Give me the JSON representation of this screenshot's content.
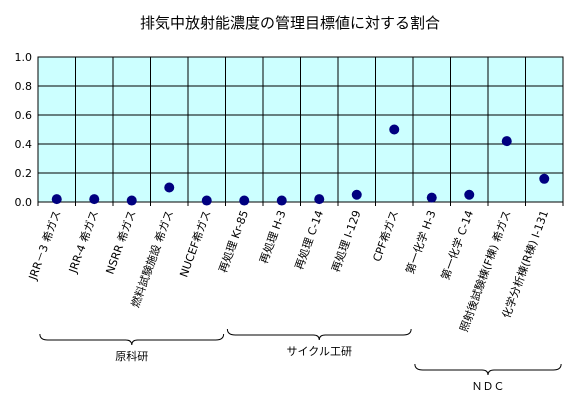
{
  "chart_data": {
    "type": "scatter",
    "title": "排気中放射能濃度の管理目標値に対する割合",
    "xlabel": "",
    "ylabel": "",
    "ylim": [
      0,
      1.0
    ],
    "yticks": [
      "0.0",
      "0.2",
      "0.4",
      "0.6",
      "0.8",
      "1.0"
    ],
    "grid": true,
    "legend": "none",
    "plot_color": "#ccffff",
    "marker_color": "#000080",
    "categories": [
      "JRR－3 希ガス",
      "JRR-4 希ガス",
      "NSRR 希ガス",
      "燃料試験施設 希ガス",
      "NUCEF希ガス",
      "再処理 Kr-85",
      "再処理 H-3",
      "再処理 C-14",
      "再処理 I-129",
      "CPF希ガス",
      "第一化学 H-3",
      "第一化学 C-14",
      "照射後試験棟(F棟) 希ガス",
      "化学分析棟(R棟) I-131"
    ],
    "values": [
      0.02,
      0.02,
      0.01,
      0.1,
      0.01,
      0.01,
      0.01,
      0.02,
      0.05,
      0.5,
      0.03,
      0.05,
      0.42,
      0.16
    ],
    "groups": [
      {
        "label": "原科研",
        "from": 0,
        "to": 4
      },
      {
        "label": "サイクル工研",
        "from": 5,
        "to": 9
      },
      {
        "label": "ＮＤＣ",
        "from": 10,
        "to": 13
      }
    ]
  }
}
